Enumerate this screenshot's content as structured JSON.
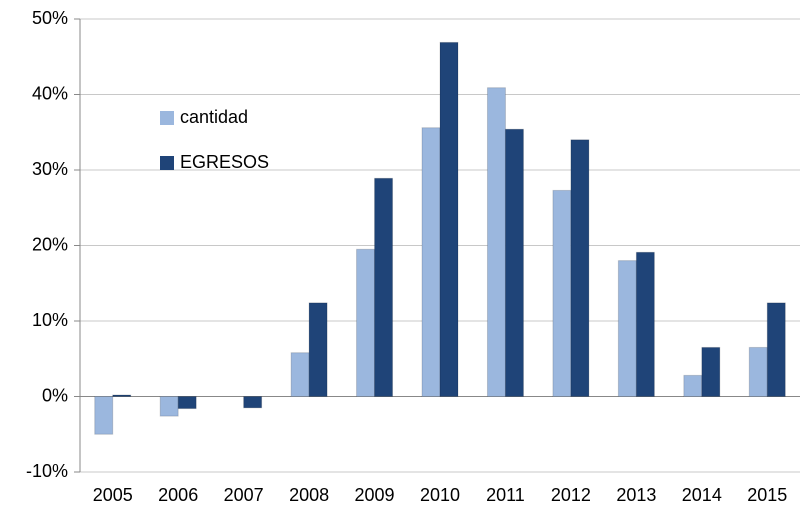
{
  "chart_data": {
    "type": "bar",
    "categories": [
      "2005",
      "2006",
      "2007",
      "2008",
      "2009",
      "2010",
      "2011",
      "2012",
      "2013",
      "2014",
      "2015"
    ],
    "series": [
      {
        "name": "cantidad",
        "color": "#9bb7de",
        "values": [
          -5.0,
          -2.6,
          0,
          5.8,
          19.5,
          35.6,
          40.9,
          27.3,
          18.0,
          2.8,
          6.5
        ]
      },
      {
        "name": "EGRESOS",
        "color": "#1f4478",
        "values": [
          0.2,
          -1.6,
          -1.5,
          12.4,
          28.9,
          46.9,
          35.4,
          34.0,
          19.1,
          6.5,
          12.4
        ]
      }
    ],
    "ylim": [
      -10,
      50
    ],
    "yticks": [
      {
        "value": -10,
        "label": "-10%"
      },
      {
        "value": 0,
        "label": "0%"
      },
      {
        "value": 10,
        "label": "10%"
      },
      {
        "value": 20,
        "label": "20%"
      },
      {
        "value": 30,
        "label": "30%"
      },
      {
        "value": 40,
        "label": "40%"
      },
      {
        "value": 50,
        "label": "50%"
      }
    ],
    "grid": true,
    "legend": "upper left"
  }
}
